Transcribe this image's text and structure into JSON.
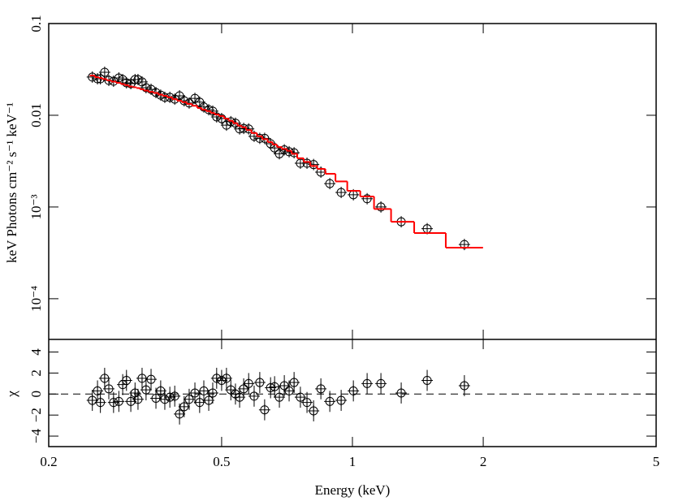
{
  "chart_data": [
    {
      "type": "scatter",
      "ylabel": "keV Photons cm⁻² s⁻¹ keV⁻¹",
      "xscale": "log",
      "yscale": "log",
      "xlim": [
        0.2,
        5
      ],
      "ylim": [
        3.6e-05,
        0.1
      ],
      "yticks": [
        {
          "value": 0.1,
          "label": "0.1"
        },
        {
          "value": 0.01,
          "label": "0.01"
        },
        {
          "value": 0.001,
          "label": "10⁻³"
        },
        {
          "value": 0.0001,
          "label": "10⁻⁴"
        }
      ],
      "x": [
        0.252,
        0.259,
        0.263,
        0.269,
        0.275,
        0.282,
        0.29,
        0.296,
        0.302,
        0.309,
        0.316,
        0.321,
        0.328,
        0.335,
        0.344,
        0.353,
        0.362,
        0.37,
        0.38,
        0.39,
        0.4,
        0.41,
        0.421,
        0.434,
        0.445,
        0.455,
        0.467,
        0.477,
        0.487,
        0.5,
        0.513,
        0.525,
        0.538,
        0.55,
        0.562,
        0.577,
        0.594,
        0.612,
        0.628,
        0.648,
        0.662,
        0.679,
        0.697,
        0.715,
        0.734,
        0.759,
        0.786,
        0.814,
        0.846,
        0.887,
        0.942,
        1.005,
        1.081,
        1.163,
        1.295,
        1.486,
        1.81
      ],
      "series": [
        {
          "kind": "points",
          "color": "#000000",
          "values": [
            0.0261,
            0.025,
            0.025,
            0.0294,
            0.024,
            0.0235,
            0.0255,
            0.0245,
            0.0226,
            0.0221,
            0.0245,
            0.0245,
            0.0231,
            0.02,
            0.0192,
            0.0177,
            0.0166,
            0.0157,
            0.0157,
            0.015,
            0.0163,
            0.0144,
            0.0136,
            0.0153,
            0.0139,
            0.0123,
            0.0115,
            0.0111,
            0.0096,
            0.0092,
            0.0078,
            0.0085,
            0.0082,
            0.0071,
            0.0072,
            0.0071,
            0.0059,
            0.0056,
            0.0056,
            0.0049,
            0.0044,
            0.0038,
            0.0042,
            0.004,
            0.0039,
            0.003,
            0.003,
            0.0029,
            0.0024,
            0.0018,
            0.00144,
            0.00136,
            0.00123,
            0.001,
            0.00069,
            0.00058,
            0.00039
          ]
        },
        {
          "kind": "step",
          "color": "#ff0000",
          "values": [
            0.0271,
            0.026,
            0.0255,
            0.0248,
            0.024,
            0.0233,
            0.0226,
            0.0219,
            0.0213,
            0.0206,
            0.0202,
            0.0198,
            0.0192,
            0.0186,
            0.018,
            0.0175,
            0.0168,
            0.0163,
            0.0157,
            0.015,
            0.0144,
            0.0139,
            0.0133,
            0.0127,
            0.012,
            0.0115,
            0.0111,
            0.0106,
            0.0102,
            0.0098,
            0.0092,
            0.0087,
            0.0082,
            0.0077,
            0.0074,
            0.0069,
            0.0064,
            0.0059,
            0.0055,
            0.0051,
            0.0048,
            0.0045,
            0.0043,
            0.0041,
            0.0038,
            0.0034,
            0.0031,
            0.0028,
            0.0026,
            0.0023,
            0.0019,
            0.0015,
            0.0013,
            0.00095,
            0.00069,
            0.00052,
            0.00036
          ]
        }
      ]
    },
    {
      "type": "residual",
      "ylabel": "χ",
      "xlabel": "Energy (keV)",
      "xscale": "log",
      "xlim": [
        0.2,
        5
      ],
      "ylim": [
        -5,
        5.2
      ],
      "xticks": [
        0.2,
        0.5,
        1,
        2,
        5
      ],
      "yticks": [
        {
          "value": -4,
          "label": "−4"
        },
        {
          "value": -2,
          "label": "−2"
        },
        0,
        2,
        4
      ],
      "reference_line": 0,
      "error": 1,
      "color": "#000000",
      "values": [
        -0.6,
        0.3,
        -0.8,
        1.5,
        0.5,
        -0.8,
        -0.7,
        0.9,
        1.3,
        -0.7,
        0.1,
        -0.5,
        1.5,
        0.4,
        1.4,
        -0.4,
        0.3,
        -0.5,
        -0.3,
        -0.2,
        -1.9,
        -1.2,
        -0.5,
        0.1,
        -0.8,
        0.3,
        -0.6,
        0.1,
        1.5,
        1.3,
        1.5,
        0.4,
        0.0,
        -0.3,
        0.5,
        1.0,
        -0.2,
        1.1,
        -1.5,
        0.6,
        0.7,
        -0.3,
        0.8,
        0.3,
        1.1,
        -0.3,
        -0.8,
        -1.6,
        0.5,
        -0.7,
        -0.6,
        0.3,
        1.0,
        1.0,
        0.1,
        1.3,
        0.8
      ]
    }
  ]
}
